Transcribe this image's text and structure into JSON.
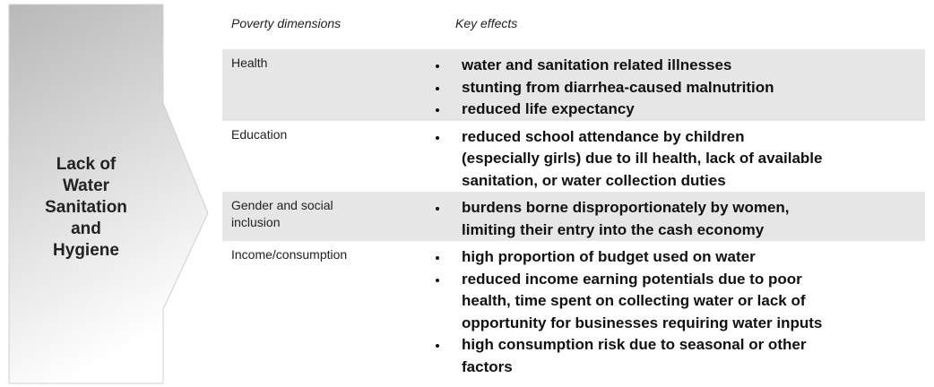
{
  "source": {
    "lines": [
      "Lack of",
      "Water",
      "Sanitation",
      "and",
      "Hygiene"
    ]
  },
  "table": {
    "headers": [
      "Poverty dimensions",
      "Key effects"
    ],
    "rows": [
      {
        "dimension": [
          "Health"
        ],
        "effects": [
          [
            "water and sanitation related illnesses"
          ],
          [
            "stunting from diarrhea-caused malnutrition"
          ],
          [
            "reduced life expectancy"
          ]
        ]
      },
      {
        "dimension": [
          "Education"
        ],
        "effects": [
          [
            "reduced school attendance by children",
            "(especially girls) due to ill health, lack of available",
            "sanitation, or water collection duties"
          ]
        ]
      },
      {
        "dimension": [
          "Gender and social",
          "inclusion"
        ],
        "effects": [
          [
            "burdens borne disproportionately by women,",
            "limiting their entry into the cash economy"
          ]
        ]
      },
      {
        "dimension": [
          "Income/consumption"
        ],
        "effects": [
          [
            "high proportion of budget used on water"
          ],
          [
            "reduced income earning potentials due to poor",
            "health, time spent on collecting water or lack of",
            "opportunity for businesses requiring water inputs"
          ],
          [
            "high consumption risk due to seasonal or other",
            "factors"
          ]
        ]
      }
    ]
  }
}
